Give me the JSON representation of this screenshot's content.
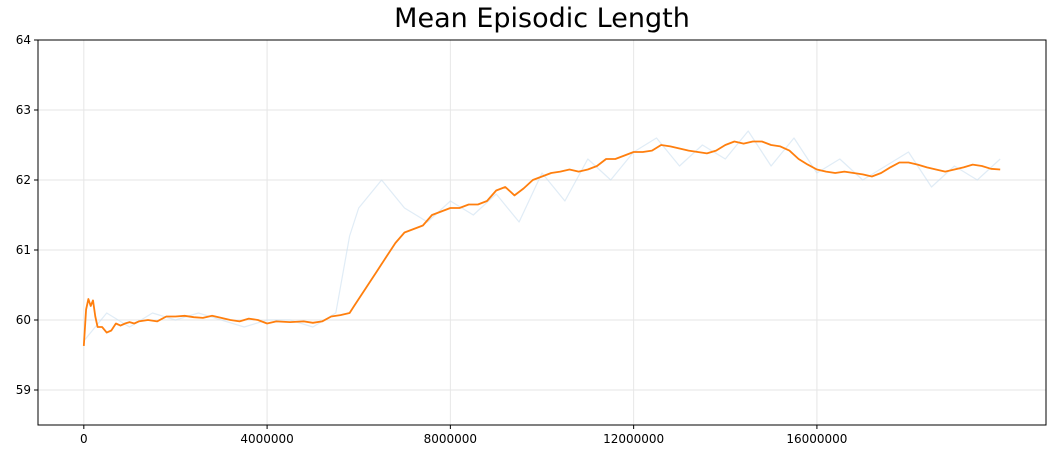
{
  "chart_data": {
    "type": "line",
    "title": "Mean Episodic Length",
    "xlabel": "",
    "ylabel": "",
    "xlim": [
      -1000000,
      21000000
    ],
    "ylim": [
      58.5,
      64
    ],
    "grid": true,
    "legend": "none",
    "x_ticks": [
      0,
      4000000,
      8000000,
      12000000,
      16000000
    ],
    "x_tick_labels": [
      "0",
      "4000000",
      "8000000",
      "12000000",
      "16000000"
    ],
    "y_ticks": [
      59,
      60,
      61,
      62,
      63,
      64
    ],
    "y_tick_labels": [
      "59",
      "60",
      "61",
      "62",
      "63",
      "64"
    ],
    "series": [
      {
        "role": "raw",
        "color": "#c6dcef",
        "x": [
          0,
          500000,
          1000000,
          1500000,
          2000000,
          2500000,
          3000000,
          3500000,
          4000000,
          4500000,
          5000000,
          5500000,
          5800000,
          6000000,
          6500000,
          7000000,
          7500000,
          8000000,
          8500000,
          9000000,
          9500000,
          10000000,
          10500000,
          11000000,
          11500000,
          12000000,
          12500000,
          13000000,
          13500000,
          14000000,
          14500000,
          15000000,
          15500000,
          16000000,
          16500000,
          17000000,
          17500000,
          18000000,
          18500000,
          19000000,
          19500000,
          20000000
        ],
        "values": [
          59.7,
          60.1,
          59.9,
          60.1,
          60.0,
          60.1,
          60.0,
          59.9,
          60.0,
          60.0,
          59.9,
          60.1,
          61.2,
          61.6,
          62.0,
          61.6,
          61.4,
          61.7,
          61.5,
          61.8,
          61.4,
          62.1,
          61.7,
          62.3,
          62.0,
          62.4,
          62.6,
          62.2,
          62.5,
          62.3,
          62.7,
          62.2,
          62.6,
          62.1,
          62.3,
          62.0,
          62.2,
          62.4,
          61.9,
          62.2,
          62.0,
          62.3
        ]
      },
      {
        "role": "smoothed",
        "color": "#ff7f0e",
        "x": [
          0,
          50000,
          100000,
          150000,
          200000,
          250000,
          300000,
          400000,
          500000,
          600000,
          700000,
          800000,
          900000,
          1000000,
          1100000,
          1200000,
          1400000,
          1600000,
          1800000,
          2000000,
          2200000,
          2400000,
          2600000,
          2800000,
          3000000,
          3200000,
          3400000,
          3600000,
          3800000,
          4000000,
          4200000,
          4500000,
          4800000,
          5000000,
          5200000,
          5400000,
          5600000,
          5800000,
          5900000,
          6000000,
          6200000,
          6400000,
          6600000,
          6800000,
          7000000,
          7200000,
          7400000,
          7600000,
          7800000,
          8000000,
          8200000,
          8400000,
          8600000,
          8800000,
          9000000,
          9200000,
          9400000,
          9600000,
          9800000,
          10000000,
          10200000,
          10400000,
          10600000,
          10800000,
          11000000,
          11200000,
          11400000,
          11600000,
          11800000,
          12000000,
          12200000,
          12400000,
          12600000,
          12800000,
          13000000,
          13200000,
          13400000,
          13600000,
          13800000,
          14000000,
          14200000,
          14400000,
          14600000,
          14800000,
          15000000,
          15200000,
          15400000,
          15600000,
          15800000,
          16000000,
          16200000,
          16400000,
          16600000,
          16800000,
          17000000,
          17200000,
          17400000,
          17600000,
          17800000,
          18000000,
          18200000,
          18400000,
          18600000,
          18800000,
          19000000,
          19200000,
          19400000,
          19600000,
          19800000,
          20000000
        ],
        "values": [
          59.63,
          60.15,
          60.3,
          60.2,
          60.28,
          60.05,
          59.9,
          59.9,
          59.82,
          59.85,
          59.95,
          59.92,
          59.95,
          59.97,
          59.95,
          59.98,
          60.0,
          59.98,
          60.05,
          60.05,
          60.06,
          60.04,
          60.03,
          60.06,
          60.03,
          60.0,
          59.98,
          60.02,
          60.0,
          59.95,
          59.98,
          59.97,
          59.98,
          59.96,
          59.98,
          60.05,
          60.07,
          60.1,
          60.2,
          60.3,
          60.5,
          60.7,
          60.9,
          61.1,
          61.25,
          61.3,
          61.35,
          61.5,
          61.55,
          61.6,
          61.6,
          61.65,
          61.65,
          61.7,
          61.85,
          61.9,
          61.78,
          61.88,
          62.0,
          62.05,
          62.1,
          62.12,
          62.15,
          62.12,
          62.15,
          62.2,
          62.3,
          62.3,
          62.35,
          62.4,
          62.4,
          62.42,
          62.5,
          62.48,
          62.45,
          62.42,
          62.4,
          62.38,
          62.42,
          62.5,
          62.55,
          62.52,
          62.55,
          62.55,
          62.5,
          62.48,
          62.42,
          62.3,
          62.22,
          62.15,
          62.12,
          62.1,
          62.12,
          62.1,
          62.08,
          62.05,
          62.1,
          62.18,
          62.25,
          62.25,
          62.22,
          62.18,
          62.15,
          62.12,
          62.15,
          62.18,
          62.22,
          62.2,
          62.16,
          62.15
        ]
      }
    ]
  }
}
